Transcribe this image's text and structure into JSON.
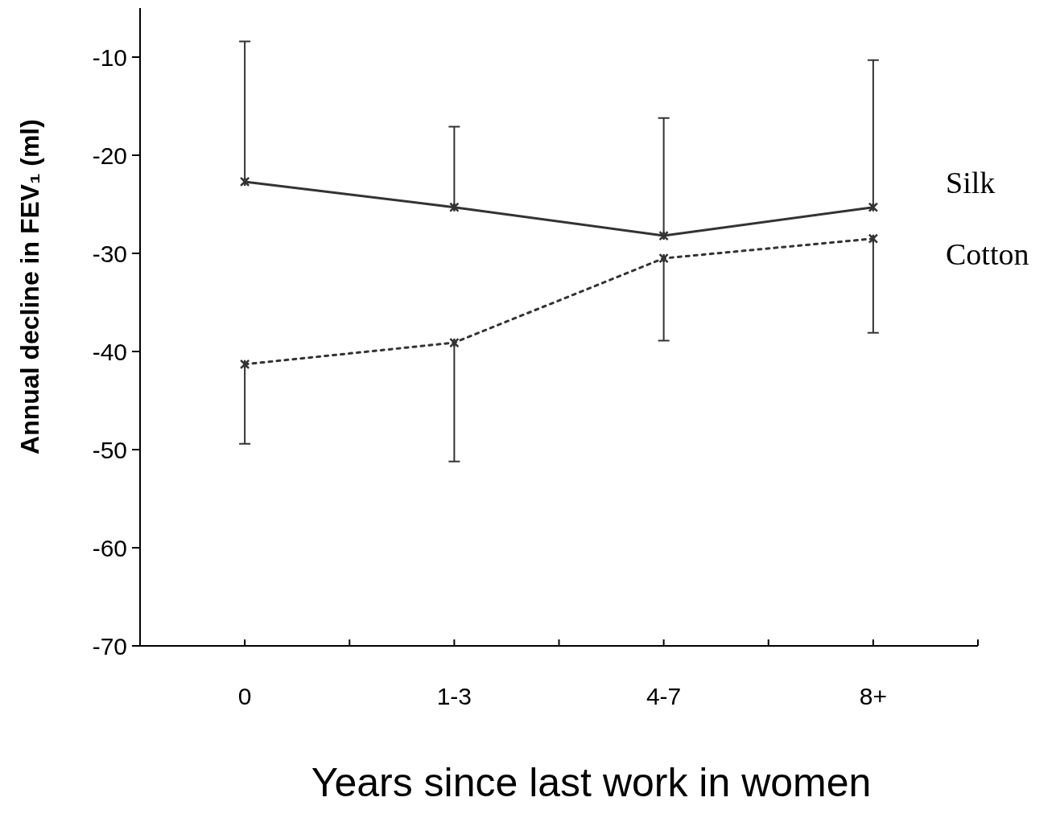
{
  "chart_data": {
    "type": "line",
    "xlabel": "Years since last work in women",
    "ylabel": "Annual decline in FEV₁ (ml)",
    "categories": [
      "0",
      "1-3",
      "4-7",
      "8+"
    ],
    "ylim": [
      -70,
      -5
    ],
    "yticks": [
      -70,
      -60,
      -50,
      -40,
      -30,
      -20,
      -10
    ],
    "grid": false,
    "marker": "cross",
    "series": [
      {
        "name": "Silk",
        "color": "#333333",
        "line_style": "solid",
        "values": [
          -22.7,
          -25.3,
          -28.2,
          -25.3
        ],
        "errors": [
          [
            -22.7,
            -8.4
          ],
          [
            -25.3,
            -17.1
          ],
          [
            -28.2,
            -16.2
          ],
          [
            -25.3,
            -10.3
          ]
        ]
      },
      {
        "name": "Cotton",
        "color": "#333333",
        "line_style": "dotted",
        "values": [
          -41.3,
          -39.1,
          -30.5,
          -28.5
        ],
        "errors": [
          [
            -49.4,
            -41.3
          ],
          [
            -51.2,
            -39.1
          ],
          [
            -38.9,
            -30.5
          ],
          [
            -38.1,
            -28.5
          ]
        ]
      }
    ]
  }
}
